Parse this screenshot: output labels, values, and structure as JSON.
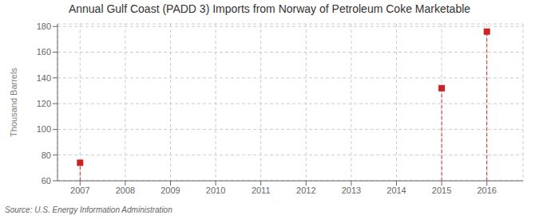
{
  "chart_data": {
    "type": "scatter",
    "title": "Annual Gulf Coast (PADD 3) Imports from Norway of Petroleum Coke Marketable",
    "y_label": "Thousand Barrels",
    "source": "Source: U.S. Energy Information Administration",
    "x": [
      2007,
      2015,
      2016
    ],
    "values": [
      74,
      132,
      176
    ],
    "color": "#cc2222",
    "marker": "square",
    "xlim": [
      2006.5,
      2016.8
    ],
    "ylim": [
      60,
      182
    ],
    "xticks": [
      2007,
      2008,
      2009,
      2010,
      2011,
      2012,
      2013,
      2014,
      2015,
      2016
    ],
    "yticks": [
      60,
      80,
      100,
      120,
      140,
      160,
      180
    ],
    "grid": true
  }
}
